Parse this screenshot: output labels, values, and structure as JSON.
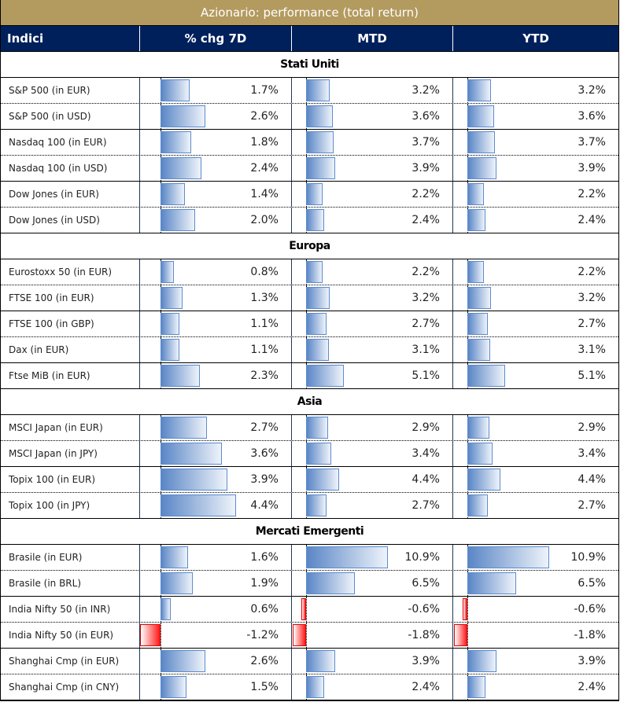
{
  "title": "Azionario: performance (total return)",
  "headers": [
    "Indici",
    "% chg 7D",
    "MTD",
    "YTD"
  ],
  "colors": {
    "title_bg": "#b39a5f",
    "header_bg": "#00205b",
    "positive_bar": "#5a86c6",
    "negative_bar": "#ff1a1a"
  },
  "sections": [
    {
      "name": "Stati Uniti",
      "rows": [
        {
          "name": "S&P 500 (in EUR)",
          "d7": "1.7%",
          "mtd": "3.2%",
          "ytd": "3.2%"
        },
        {
          "name": "S&P 500 (in USD)",
          "d7": "2.6%",
          "mtd": "3.6%",
          "ytd": "3.6%"
        },
        {
          "name": "Nasdaq 100 (in EUR)",
          "d7": "1.8%",
          "mtd": "3.7%",
          "ytd": "3.7%"
        },
        {
          "name": "Nasdaq 100 (in USD)",
          "d7": "2.4%",
          "mtd": "3.9%",
          "ytd": "3.9%"
        },
        {
          "name": "Dow Jones (in EUR)",
          "d7": "1.4%",
          "mtd": "2.2%",
          "ytd": "2.2%"
        },
        {
          "name": "Dow Jones (in USD)",
          "d7": "2.0%",
          "mtd": "2.4%",
          "ytd": "2.4%"
        }
      ]
    },
    {
      "name": "Europa",
      "rows": [
        {
          "name": "Eurostoxx 50 (in EUR)",
          "d7": "0.8%",
          "mtd": "2.2%",
          "ytd": "2.2%"
        },
        {
          "name": "FTSE 100 (in EUR)",
          "d7": "1.3%",
          "mtd": "3.2%",
          "ytd": "3.2%"
        },
        {
          "name": "FTSE 100 (in GBP)",
          "d7": "1.1%",
          "mtd": "2.7%",
          "ytd": "2.7%"
        },
        {
          "name": "Dax (in EUR)",
          "d7": "1.1%",
          "mtd": "3.1%",
          "ytd": "3.1%"
        },
        {
          "name": "Ftse MiB (in EUR)",
          "d7": "2.3%",
          "mtd": "5.1%",
          "ytd": "5.1%"
        }
      ]
    },
    {
      "name": "Asia",
      "rows": [
        {
          "name": "MSCI Japan (in EUR)",
          "d7": "2.7%",
          "mtd": "2.9%",
          "ytd": "2.9%"
        },
        {
          "name": "MSCI Japan (in JPY)",
          "d7": "3.6%",
          "mtd": "3.4%",
          "ytd": "3.4%"
        },
        {
          "name": "Topix 100 (in EUR)",
          "d7": "3.9%",
          "mtd": "4.4%",
          "ytd": "4.4%"
        },
        {
          "name": "Topix 100 (in JPY)",
          "d7": "4.4%",
          "mtd": "2.7%",
          "ytd": "2.7%"
        }
      ]
    },
    {
      "name": "Mercati Emergenti",
      "rows": [
        {
          "name": "Brasile (in EUR)",
          "d7": "1.6%",
          "mtd": "10.9%",
          "ytd": "10.9%"
        },
        {
          "name": "Brasile (in BRL)",
          "d7": "1.9%",
          "mtd": "6.5%",
          "ytd": "6.5%"
        },
        {
          "name": "India Nifty 50 (in INR)",
          "d7": "0.6%",
          "mtd": "-0.6%",
          "ytd": "-0.6%"
        },
        {
          "name": "India Nifty 50 (in EUR)",
          "d7": "-1.2%",
          "mtd": "-1.8%",
          "ytd": "-1.8%"
        },
        {
          "name": "Shanghai Cmp (in EUR)",
          "d7": "2.6%",
          "mtd": "3.9%",
          "ytd": "3.9%"
        },
        {
          "name": "Shanghai Cmp (in CNY)",
          "d7": "1.5%",
          "mtd": "2.4%",
          "ytd": "2.4%"
        }
      ]
    }
  ]
}
